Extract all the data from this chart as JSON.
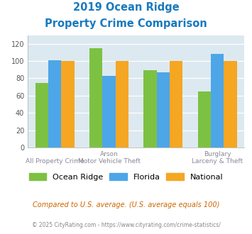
{
  "title_line1": "2019 Ocean Ridge",
  "title_line2": "Property Crime Comparison",
  "title_color": "#1a7abf",
  "ocean_ridge": [
    75,
    115,
    89,
    65
  ],
  "florida": [
    101,
    83,
    87,
    108
  ],
  "national": [
    100,
    100,
    100,
    100
  ],
  "colors": {
    "ocean_ridge": "#7dc142",
    "florida": "#4da6e8",
    "national": "#f5a623"
  },
  "ylim": [
    0,
    130
  ],
  "yticks": [
    0,
    20,
    40,
    60,
    80,
    100,
    120
  ],
  "plot_bg": "#dce9f0",
  "legend_labels": [
    "Ocean Ridge",
    "Florida",
    "National"
  ],
  "top_labels": [
    "",
    "Arson",
    "",
    "Burglary"
  ],
  "bottom_labels": [
    "All Property Crime",
    "Motor Vehicle Theft",
    "",
    "Larceny & Theft"
  ],
  "footnote1": "Compared to U.S. average. (U.S. average equals 100)",
  "footnote2": "© 2025 CityRating.com - https://www.cityrating.com/crime-statistics/",
  "footnote1_color": "#cc6600",
  "footnote2_color": "#888888",
  "label_color": "#888899"
}
